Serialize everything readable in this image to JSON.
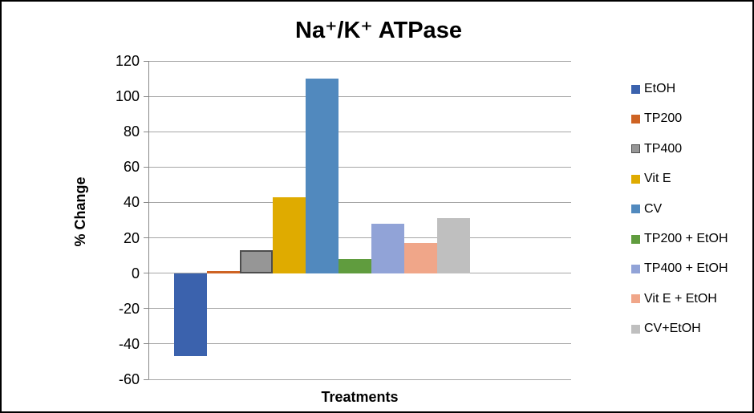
{
  "chart_data": {
    "type": "bar",
    "title": "Na⁺/K⁺ ATPase",
    "xlabel": "Treatments",
    "ylabel": "% Change",
    "ylim": [
      -60,
      120
    ],
    "ytick_step": 20,
    "y_tick_labels": [
      "120",
      "100",
      "80",
      "60",
      "40",
      "20",
      "0",
      "-20",
      "-40",
      "-60"
    ],
    "grid": true,
    "legend_position": "right",
    "series": [
      {
        "name": "EtOH",
        "value": -47,
        "color": "#3B62AD"
      },
      {
        "name": "TP200",
        "value": 1,
        "color": "#CE6323"
      },
      {
        "name": "TP400",
        "value": 13,
        "color": "#969696",
        "border": "#4D4D4D"
      },
      {
        "name": "Vit E",
        "value": 43,
        "color": "#DFAB00"
      },
      {
        "name": "CV",
        "value": 110,
        "color": "#5189BE"
      },
      {
        "name": "TP200 + EtOH",
        "value": 8,
        "color": "#609C3E"
      },
      {
        "name": "TP400 + EtOH",
        "value": 28,
        "color": "#91A3D7"
      },
      {
        "name": "Vit E + EtOH",
        "value": 17,
        "color": "#F0A689"
      },
      {
        "name": "CV+EtOH",
        "value": 31,
        "color": "#BFBFBF"
      }
    ],
    "colors": {
      "gridline": "#A6A6A6",
      "axis": "#898989",
      "frame_border": "#000000"
    }
  }
}
